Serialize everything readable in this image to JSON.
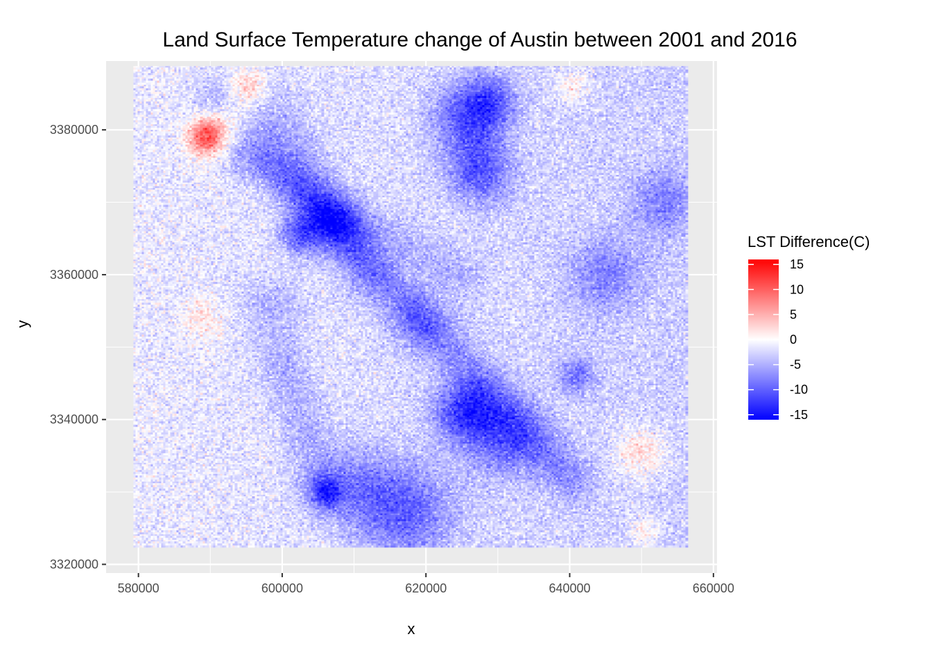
{
  "chart_data": {
    "type": "heatmap",
    "title": "Land Surface Temperature change of Austin between 2001 and 2016",
    "xlabel": "x",
    "ylabel": "y",
    "xlim": [
      575500,
      660500
    ],
    "ylim": [
      3318800,
      3389500
    ],
    "raster_extent": {
      "x": [
        579300,
        656500
      ],
      "y": [
        3322300,
        3388800
      ]
    },
    "x_ticks": [
      580000,
      600000,
      620000,
      640000,
      660000
    ],
    "x_tick_labels": [
      "580000",
      "600000",
      "620000",
      "640000",
      "660000"
    ],
    "y_ticks": [
      3320000,
      3340000,
      3360000,
      3380000
    ],
    "y_tick_labels": [
      "3320000",
      "3340000",
      "3360000",
      "3380000"
    ],
    "grid": true,
    "legend": {
      "title": "LST Difference(C)",
      "position": "right",
      "range": [
        -16,
        16
      ],
      "breaks": [
        15,
        10,
        5,
        0,
        -5,
        -10,
        -15
      ],
      "break_labels": [
        "15",
        "10",
        "5",
        "0",
        "-5",
        "-10",
        "-15"
      ],
      "low_color": "#0000ff",
      "mid_color": "#ffffff",
      "high_color": "#ff0000"
    },
    "features": [
      {
        "x": 589500,
        "y": 3379000,
        "value": 12,
        "r": 1800
      },
      {
        "x": 595500,
        "y": 3386500,
        "value": 7,
        "r": 2000
      },
      {
        "x": 593000,
        "y": 3381500,
        "value": 5,
        "r": 2500
      },
      {
        "x": 626000,
        "y": 3381500,
        "value": -8,
        "r": 3500
      },
      {
        "x": 627500,
        "y": 3374000,
        "value": -8,
        "r": 3000
      },
      {
        "x": 629000,
        "y": 3384000,
        "value": -6,
        "r": 2500
      },
      {
        "x": 602500,
        "y": 3365500,
        "value": -8,
        "r": 2000
      },
      {
        "x": 625500,
        "y": 3341000,
        "value": -10,
        "r": 3000
      },
      {
        "x": 631000,
        "y": 3337000,
        "value": -7,
        "r": 3500
      },
      {
        "x": 617500,
        "y": 3327000,
        "value": -7,
        "r": 4500
      },
      {
        "x": 611000,
        "y": 3330500,
        "value": -5,
        "r": 4000
      },
      {
        "x": 606000,
        "y": 3330000,
        "value": -8,
        "r": 1500
      },
      {
        "x": 607000,
        "y": 3367000,
        "value": -6,
        "r": 2500
      },
      {
        "x": 650000,
        "y": 3335500,
        "value": 5,
        "r": 2500
      },
      {
        "x": 598500,
        "y": 3355500,
        "value": -3,
        "r": 3000
      },
      {
        "x": 641000,
        "y": 3346000,
        "value": -6,
        "r": 1800
      },
      {
        "x": 619000,
        "y": 3353500,
        "value": -4,
        "r": 3000
      },
      {
        "x": 645000,
        "y": 3360000,
        "value": -5,
        "r": 3500
      },
      {
        "x": 653000,
        "y": 3370000,
        "value": -5,
        "r": 3000
      },
      {
        "x": 650500,
        "y": 3324500,
        "value": 4,
        "r": 1500
      },
      {
        "x": 640500,
        "y": 3386000,
        "value": 4,
        "r": 1500
      },
      {
        "x": 589000,
        "y": 3354000,
        "value": 3,
        "r": 2000
      }
    ]
  }
}
